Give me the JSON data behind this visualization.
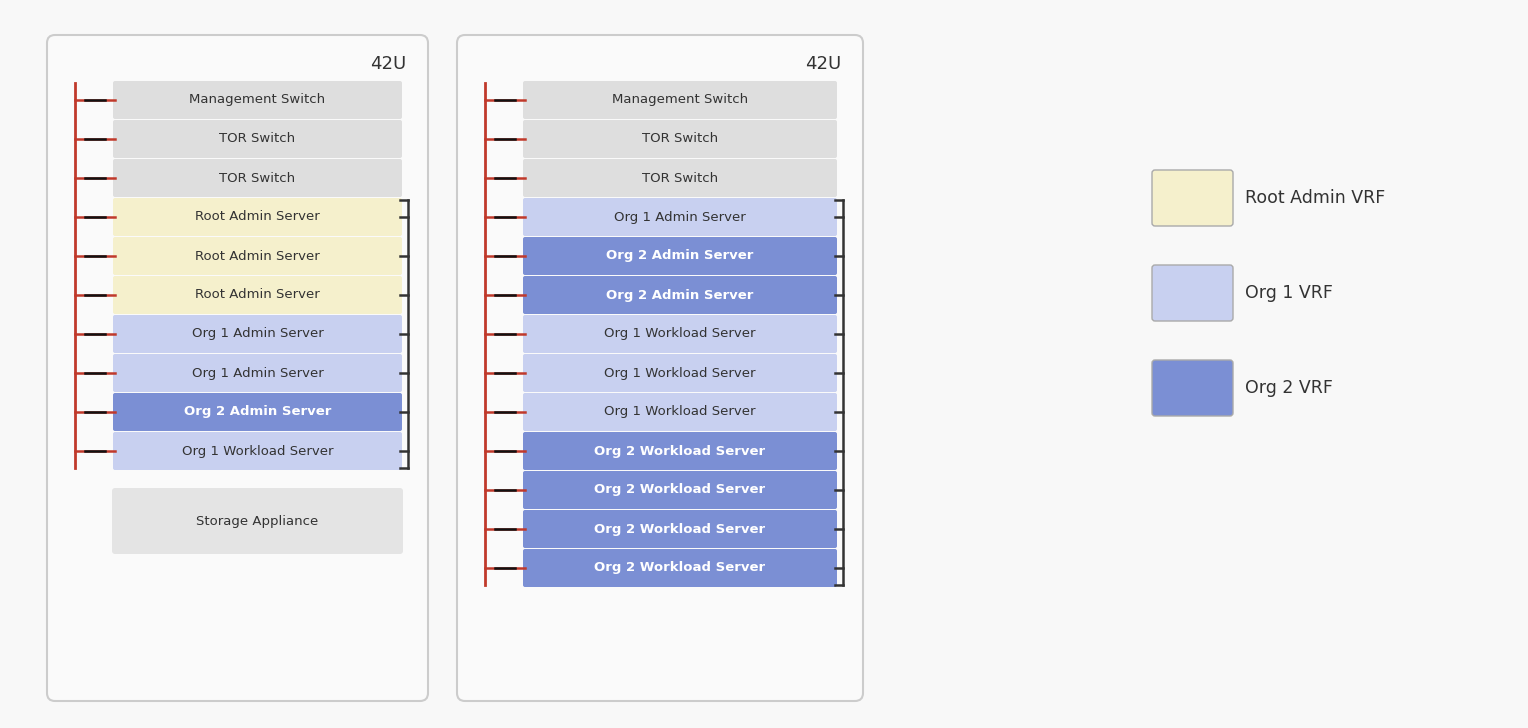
{
  "background": "#f8f8f8",
  "panel_bg": "#fafafa",
  "panel_border": "#cccccc",
  "title_color": "#333333",
  "label_color": "#333333",
  "colors": {
    "gray": "#dedede",
    "yellow": "#f5f0cc",
    "blue_light": "#c8d0f0",
    "blue_medium": "#7b8fd4",
    "storage_gray": "#e4e4e4"
  },
  "panel1": {
    "title": "42U",
    "rows": [
      {
        "label": "Management Switch",
        "color": "gray"
      },
      {
        "label": "TOR Switch",
        "color": "gray"
      },
      {
        "label": "TOR Switch",
        "color": "gray"
      },
      {
        "label": "Root Admin Server",
        "color": "yellow"
      },
      {
        "label": "Root Admin Server",
        "color": "yellow"
      },
      {
        "label": "Root Admin Server",
        "color": "yellow"
      },
      {
        "label": "Org 1 Admin Server",
        "color": "blue_light"
      },
      {
        "label": "Org 1 Admin Server",
        "color": "blue_light"
      },
      {
        "label": "Org 2 Admin Server",
        "color": "blue_medium"
      },
      {
        "label": "Org 1 Workload Server",
        "color": "blue_light"
      },
      {
        "label": "Storage Appliance",
        "color": "storage_gray",
        "tall": true
      }
    ]
  },
  "panel2": {
    "title": "42U",
    "rows": [
      {
        "label": "Management Switch",
        "color": "gray"
      },
      {
        "label": "TOR Switch",
        "color": "gray"
      },
      {
        "label": "TOR Switch",
        "color": "gray"
      },
      {
        "label": "Org 1 Admin Server",
        "color": "blue_light"
      },
      {
        "label": "Org 2 Admin Server",
        "color": "blue_medium"
      },
      {
        "label": "Org 2 Admin Server",
        "color": "blue_medium"
      },
      {
        "label": "Org 1 Workload Server",
        "color": "blue_light"
      },
      {
        "label": "Org 1 Workload Server",
        "color": "blue_light"
      },
      {
        "label": "Org 1 Workload Server",
        "color": "blue_light"
      },
      {
        "label": "Org 2 Workload Server",
        "color": "blue_medium"
      },
      {
        "label": "Org 2 Workload Server",
        "color": "blue_medium"
      },
      {
        "label": "Org 2 Workload Server",
        "color": "blue_medium"
      },
      {
        "label": "Org 2 Workload Server",
        "color": "blue_medium"
      }
    ]
  },
  "legend": [
    {
      "label": "Root Admin VRF",
      "color": "yellow"
    },
    {
      "label": "Org 1 VRF",
      "color": "blue_light"
    },
    {
      "label": "Org 2 VRF",
      "color": "blue_medium"
    }
  ],
  "red_color": "#c0392b",
  "box_text_color_dark": "#333333",
  "box_text_color_light": "#ffffff"
}
